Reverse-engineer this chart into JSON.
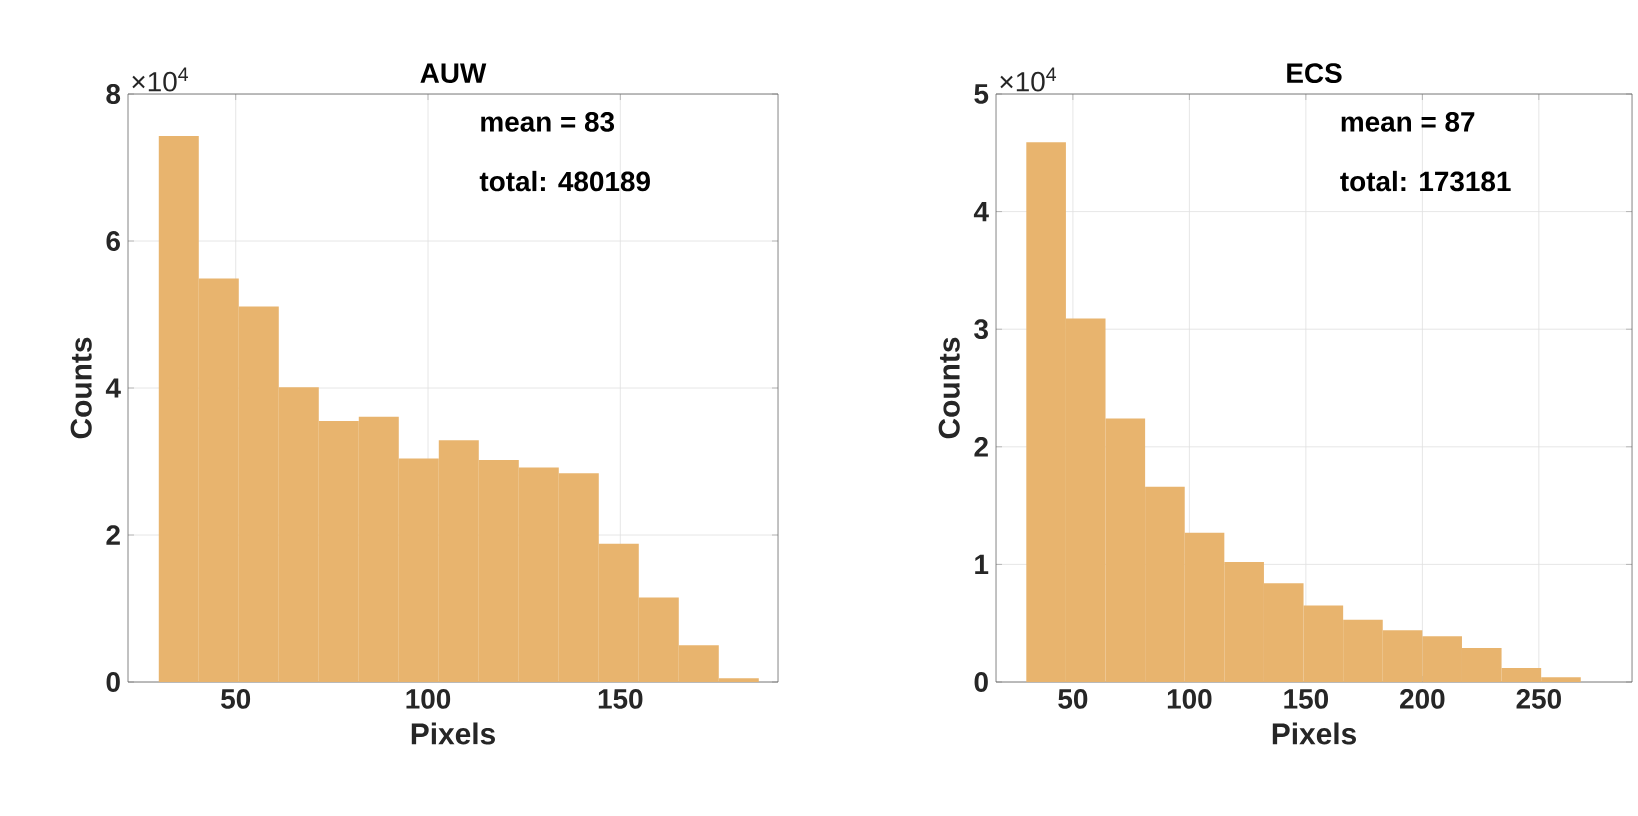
{
  "chart_data": [
    {
      "type": "histogram",
      "title": "AUW",
      "xlabel": "Pixels",
      "ylabel": "Counts",
      "color": "#e8b46e",
      "grid": true,
      "bins": [
        30,
        40.4,
        50.8,
        61.2,
        71.6,
        82,
        92.4,
        102.8,
        113.2,
        123.6,
        134,
        144.4,
        154.8,
        165.2,
        175.6,
        186
      ],
      "values": [
        7.43,
        5.49,
        5.11,
        4.01,
        3.55,
        3.61,
        3.04,
        3.29,
        3.02,
        2.92,
        2.84,
        1.88,
        1.15,
        0.5,
        0.05
      ],
      "xlim": [
        22,
        191
      ],
      "xticks": [
        50,
        100,
        150
      ],
      "ylim": [
        0,
        8
      ],
      "yticks": [
        0,
        2,
        4,
        6,
        8
      ],
      "annotations": [
        "×10$^{4}$",
        "mean = 83",
        "total: 480189"
      ]
    },
    {
      "type": "histogram",
      "title": "ECS",
      "xlabel": "Pixels",
      "ylabel": "Counts",
      "color": "#e8b46e",
      "grid": true,
      "bins": [
        30,
        47,
        64,
        81,
        98,
        115,
        132,
        149,
        166,
        183,
        200,
        217,
        234,
        251,
        268
      ],
      "values": [
        4.59,
        3.09,
        2.24,
        1.66,
        1.27,
        1.02,
        0.84,
        0.65,
        0.53,
        0.44,
        0.39,
        0.29,
        0.12,
        0.04
      ],
      "xlim": [
        17,
        290
      ],
      "xticks": [
        50,
        100,
        150,
        200,
        250
      ],
      "ylim": [
        0,
        5
      ],
      "yticks": [
        0,
        1,
        2,
        3,
        4,
        5
      ],
      "annotations": [
        "×10$^{4}$",
        "mean = 87",
        "total: 173181"
      ]
    }
  ]
}
